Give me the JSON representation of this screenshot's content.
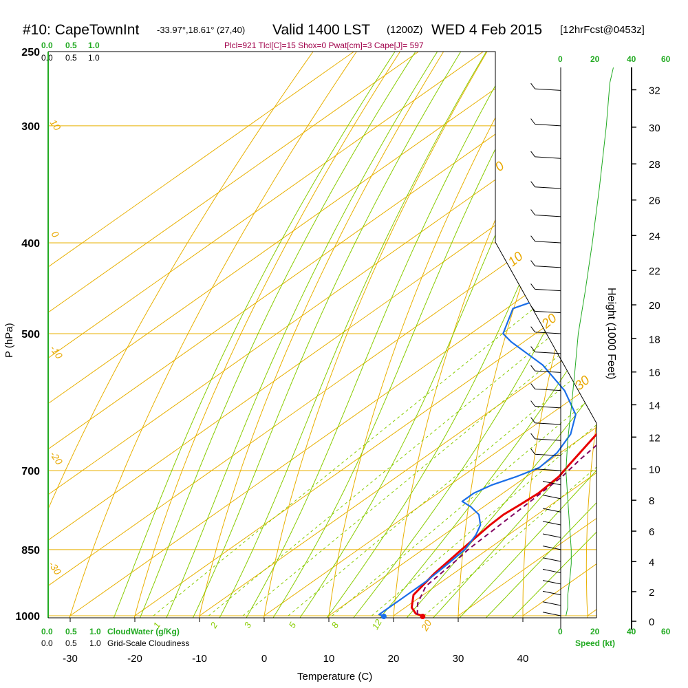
{
  "header": {
    "station": "#10: CapeTownInt",
    "coords": "-33.97°,18.61° (27,40)",
    "valid": "Valid 1400 LST",
    "zulu": "(1200Z)",
    "date": "WED 4 Feb 2015",
    "fcst": "[12hrFcst@0453z]",
    "params": "Plcl=921 Tlcl[C]=15 Shox=0 Pwat[cm]=3 Cape[J]= 597"
  },
  "colors": {
    "isobar": "#e8b000",
    "dry_adiabat": "#e8b000",
    "isotherm": "#e8b000",
    "moist_adiabat": "#88cc00",
    "mixing_ratio": "#88cc00",
    "temperature": "#e80000",
    "dewpoint": "#1a6ee8",
    "parcel": "#800060",
    "wind_speed": "#22aa22"
  },
  "bottom_legend": {
    "cloudwater_ticks": [
      "0.0",
      "0.5",
      "1.0"
    ],
    "cloudwater_label": "CloudWater (g/Kg)",
    "cloudiness_ticks": [
      "0.0",
      "0.5",
      "1.0"
    ],
    "cloudiness_label": "Grid-Scale Cloudiness"
  },
  "top_legend": {
    "green_ticks": [
      "0.0",
      "0.5",
      "1.0"
    ],
    "black_ticks": [
      "0.0",
      "0.5",
      "1.0"
    ]
  },
  "wind_panel": {
    "top_ticks": [
      "0",
      "20",
      "40",
      "60"
    ],
    "bottom_ticks": [
      "0",
      "20",
      "40",
      "60"
    ],
    "label": "Speed (kt)"
  },
  "isotherm_labels": [
    "10",
    "0",
    "-10",
    "-20",
    "-30"
  ],
  "dry_adiabat_labels": [
    "0",
    "10",
    "20",
    "30"
  ],
  "mixing_ratio_labels": [
    "1",
    "2",
    "3",
    "5",
    "8",
    "12",
    "20"
  ],
  "chart_data": {
    "type": "line",
    "title": "#10: CapeTownInt",
    "xlabel": "Temperature (C)",
    "ylabel": "P (hPa)",
    "y2label": "Height (1000 Feet)",
    "xlim": [
      -33,
      45
    ],
    "ylim": [
      1000,
      250
    ],
    "x_ticks": [
      -30,
      -20,
      -10,
      0,
      10,
      20,
      30,
      40
    ],
    "p_ticks": [
      250,
      300,
      400,
      500,
      700,
      850,
      1000
    ],
    "height_ticks": [
      0,
      2,
      4,
      6,
      8,
      10,
      12,
      14,
      16,
      18,
      20,
      22,
      24,
      26,
      28,
      30,
      32
    ],
    "series": [
      {
        "name": "Temperature",
        "points": [
          [
            24.5,
            1000
          ],
          [
            23,
            995
          ],
          [
            21,
            980
          ],
          [
            18.5,
            950
          ],
          [
            17,
            900
          ],
          [
            16,
            850
          ],
          [
            15,
            800
          ],
          [
            14.8,
            780
          ],
          [
            15.2,
            760
          ],
          [
            15.5,
            740
          ],
          [
            15,
            710
          ],
          [
            14,
            690
          ],
          [
            11,
            630
          ],
          [
            9,
            580
          ],
          [
            7,
            530
          ],
          [
            5.5,
            500
          ],
          [
            4.2,
            470
          ],
          [
            3,
            430
          ],
          [
            2,
            400
          ],
          [
            1,
            370
          ],
          [
            0,
            340
          ],
          [
            -1.5,
            300
          ],
          [
            -2.5,
            270
          ],
          [
            -3,
            260
          ]
        ]
      },
      {
        "name": "Dewpoint",
        "points": [
          [
            18.5,
            1000
          ],
          [
            17.5,
            997
          ],
          [
            17.5,
            960
          ],
          [
            17.5,
            920
          ],
          [
            17,
            880
          ],
          [
            16.5,
            850
          ],
          [
            15,
            820
          ],
          [
            13.5,
            800
          ],
          [
            11,
            780
          ],
          [
            8,
            765
          ],
          [
            5.5,
            755
          ],
          [
            5.5,
            740
          ],
          [
            6.5,
            725
          ],
          [
            8.5,
            710
          ],
          [
            10,
            695
          ],
          [
            9.5,
            670
          ],
          [
            7.5,
            640
          ],
          [
            4,
            610
          ],
          [
            -3,
            575
          ],
          [
            -12,
            540
          ],
          [
            -22,
            510
          ],
          [
            -25,
            500
          ],
          [
            -29,
            470
          ],
          [
            -23,
            440
          ],
          [
            -21,
            420
          ],
          [
            -21,
            400
          ],
          [
            -22,
            370
          ],
          [
            -22,
            350
          ],
          [
            -21,
            330
          ],
          [
            -20,
            310
          ],
          [
            -19,
            290
          ],
          [
            -18.5,
            270
          ],
          [
            -18.5,
            260
          ]
        ]
      },
      {
        "name": "Parcel",
        "points": [
          [
            23.5,
            998
          ],
          [
            21,
            970
          ],
          [
            18.5,
            930
          ],
          [
            18,
            900
          ],
          [
            17.5,
            870
          ],
          [
            17,
            850
          ],
          [
            16.5,
            800
          ],
          [
            16,
            750
          ],
          [
            15.5,
            710
          ],
          [
            14.5,
            680
          ],
          [
            13.5,
            640
          ],
          [
            12.5,
            600
          ],
          [
            11,
            560
          ],
          [
            10,
            530
          ],
          [
            9.5,
            510
          ],
          [
            8.5,
            480
          ],
          [
            7.5,
            460
          ],
          [
            6,
            430
          ],
          [
            4.5,
            400
          ]
        ]
      }
    ],
    "wind_speed_kt": [
      [
        3,
        1000
      ],
      [
        4,
        980
      ],
      [
        4,
        950
      ],
      [
        5,
        920
      ],
      [
        6,
        880
      ],
      [
        6,
        850
      ],
      [
        5,
        800
      ],
      [
        4,
        750
      ],
      [
        3,
        700
      ],
      [
        4,
        650
      ],
      [
        6,
        600
      ],
      [
        8,
        550
      ],
      [
        10,
        500
      ],
      [
        14,
        450
      ],
      [
        18,
        400
      ],
      [
        22,
        350
      ],
      [
        26,
        300
      ],
      [
        28,
        270
      ],
      [
        30,
        260
      ]
    ],
    "grid": true,
    "legend": "none"
  }
}
